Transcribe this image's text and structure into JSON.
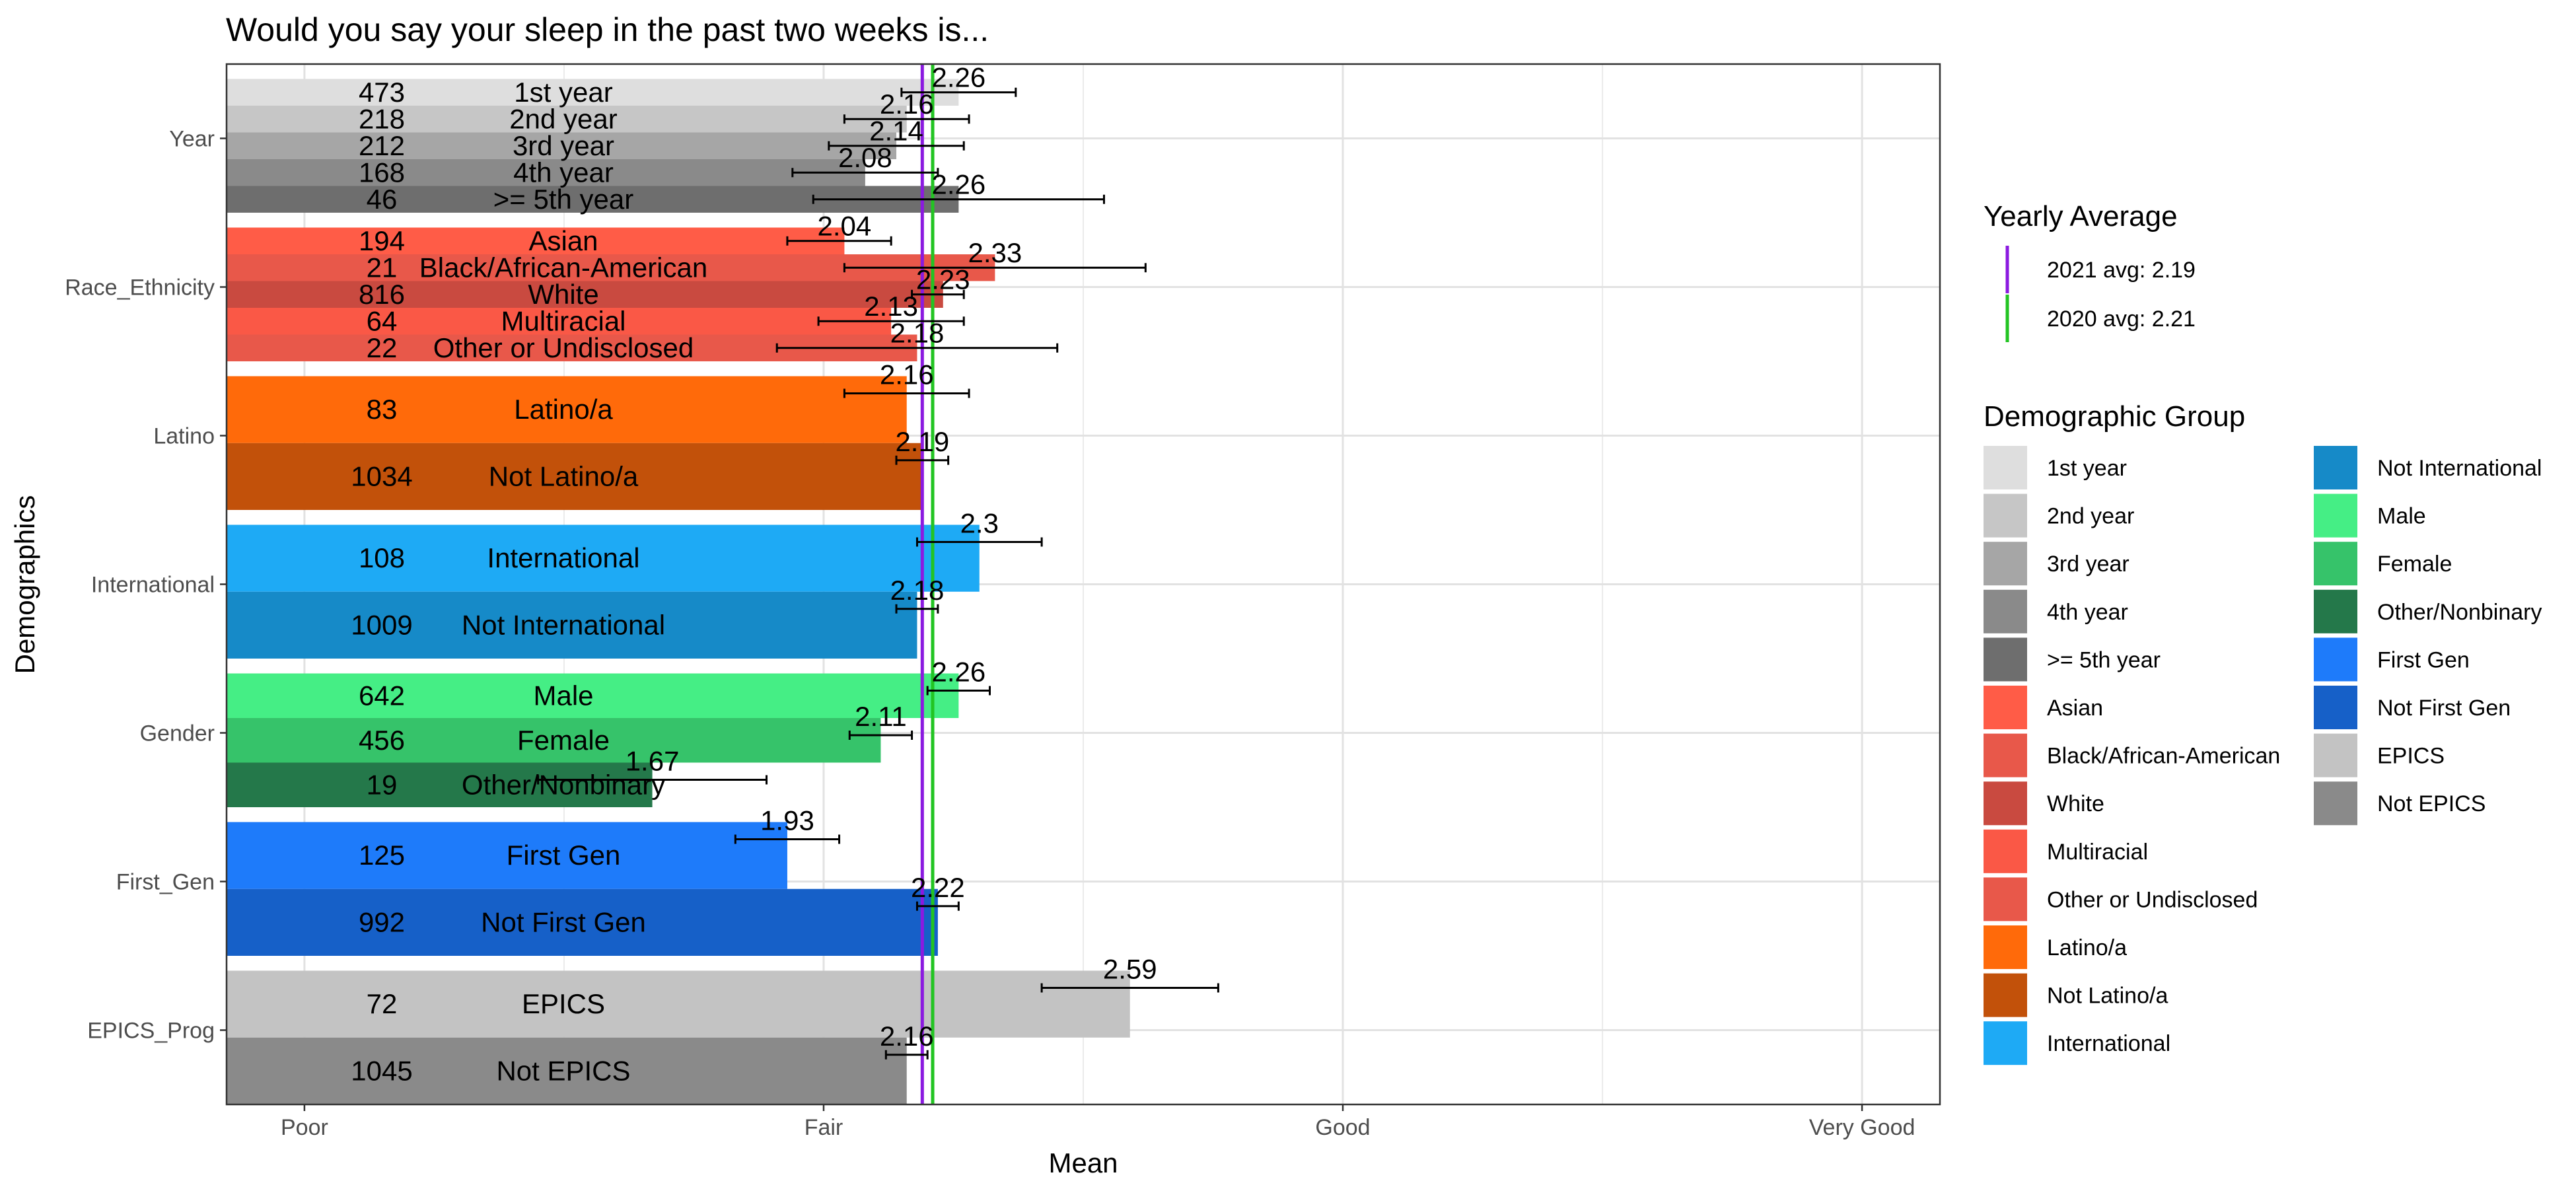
{
  "chart_data": {
    "type": "bar",
    "orientation": "horizontal",
    "title": "Would you say your sleep in the past two weeks is...",
    "xlabel": "Mean",
    "ylabel": "Demographics",
    "xlim": [
      0.85,
      4.15
    ],
    "x_ticks": [
      {
        "value": 1,
        "label": "Poor"
      },
      {
        "value": 2,
        "label": "Fair"
      },
      {
        "value": 3,
        "label": "Good"
      },
      {
        "value": 4,
        "label": "Very Good"
      }
    ],
    "grid": true,
    "facets": [
      "Year",
      "Race_Ethnicity",
      "Latino",
      "International",
      "Gender",
      "First_Gen",
      "EPICS_Prog"
    ],
    "groups": [
      {
        "category": "Year",
        "name": "1st year",
        "n": "473",
        "mean": 2.26,
        "ci": [
          2.15,
          2.37
        ],
        "value_label": "2.26",
        "color": "#dedede"
      },
      {
        "category": "Year",
        "name": "2nd year",
        "n": "218",
        "mean": 2.16,
        "ci": [
          2.04,
          2.28
        ],
        "value_label": "2.16",
        "color": "#c6c6c6"
      },
      {
        "category": "Year",
        "name": "3rd year",
        "n": "212",
        "mean": 2.14,
        "ci": [
          2.01,
          2.27
        ],
        "value_label": "2.14",
        "color": "#a6a6a6"
      },
      {
        "category": "Year",
        "name": "4th year",
        "n": "168",
        "mean": 2.08,
        "ci": [
          1.94,
          2.22
        ],
        "value_label": "2.08",
        "color": "#8a8a8a"
      },
      {
        "category": "Year",
        "name": ">= 5th year",
        "n": "46",
        "mean": 2.26,
        "ci": [
          1.98,
          2.54
        ],
        "value_label": "2.26",
        "color": "#6e6e6e"
      },
      {
        "category": "Race_Ethnicity",
        "name": "Asian",
        "n": "194",
        "mean": 2.04,
        "ci": [
          1.93,
          2.13
        ],
        "value_label": "2.04",
        "color": "#ff5c47"
      },
      {
        "category": "Race_Ethnicity",
        "name": "Black/African-American",
        "n": "21",
        "mean": 2.33,
        "ci": [
          2.04,
          2.62
        ],
        "value_label": "2.33",
        "color": "#e8584a"
      },
      {
        "category": "Race_Ethnicity",
        "name": "White",
        "n": "816",
        "mean": 2.23,
        "ci": [
          2.17,
          2.27
        ],
        "value_label": "2.23",
        "color": "#c94a40"
      },
      {
        "category": "Race_Ethnicity",
        "name": "Multiracial",
        "n": "64",
        "mean": 2.13,
        "ci": [
          1.99,
          2.27
        ],
        "value_label": "2.13",
        "color": "#fa5846"
      },
      {
        "category": "Race_Ethnicity",
        "name": "Other or Undisclosed",
        "n": "22",
        "mean": 2.18,
        "ci": [
          1.91,
          2.45
        ],
        "value_label": "2.18",
        "color": "#e8584a"
      },
      {
        "category": "Latino",
        "name": "Latino/a",
        "n": "83",
        "mean": 2.16,
        "ci": [
          2.04,
          2.28
        ],
        "value_label": "2.16",
        "color": "#ff6a0a"
      },
      {
        "category": "Latino",
        "name": "Not Latino/a",
        "n": "1034",
        "mean": 2.19,
        "ci": [
          2.14,
          2.24
        ],
        "value_label": "2.19",
        "color": "#c2510a"
      },
      {
        "category": "International",
        "name": "International",
        "n": "108",
        "mean": 2.3,
        "ci": [
          2.18,
          2.42
        ],
        "value_label": "2.3",
        "color": "#1eaaf5"
      },
      {
        "category": "International",
        "name": "Not International",
        "n": "1009",
        "mean": 2.18,
        "ci": [
          2.14,
          2.22
        ],
        "value_label": "2.18",
        "color": "#168ac8"
      },
      {
        "category": "Gender",
        "name": "Male",
        "n": "642",
        "mean": 2.26,
        "ci": [
          2.2,
          2.32
        ],
        "value_label": "2.26",
        "color": "#45ee85"
      },
      {
        "category": "Gender",
        "name": "Female",
        "n": "456",
        "mean": 2.11,
        "ci": [
          2.05,
          2.17
        ],
        "value_label": "2.11",
        "color": "#36c36a"
      },
      {
        "category": "Gender",
        "name": "Other/Nonbinary",
        "n": "19",
        "mean": 1.67,
        "ci": [
          1.45,
          1.89
        ],
        "value_label": "1.67",
        "color": "#24784a"
      },
      {
        "category": "First_Gen",
        "name": "First Gen",
        "n": "125",
        "mean": 1.93,
        "ci": [
          1.83,
          2.03
        ],
        "value_label": "1.93",
        "color": "#1e7bfa"
      },
      {
        "category": "First_Gen",
        "name": "Not First Gen",
        "n": "992",
        "mean": 2.22,
        "ci": [
          2.18,
          2.26
        ],
        "value_label": "2.22",
        "color": "#1660c8"
      },
      {
        "category": "EPICS_Prog",
        "name": "EPICS",
        "n": "72",
        "mean": 2.59,
        "ci": [
          2.42,
          2.76
        ],
        "value_label": "2.59",
        "color": "#c3c3c3"
      },
      {
        "category": "EPICS_Prog",
        "name": "Not EPICS",
        "n": "1045",
        "mean": 2.16,
        "ci": [
          2.12,
          2.2
        ],
        "value_label": "2.16",
        "color": "#8a8a8a"
      }
    ],
    "reference_lines": [
      {
        "label": "2021 avg: 2.19",
        "value": 2.19,
        "color": "#8b1ae0"
      },
      {
        "label": "2020 avg: 2.21",
        "value": 2.21,
        "color": "#22c422"
      }
    ],
    "legend_title_lines": "Yearly Average",
    "legend_title_groups": "Demographic Group",
    "legend_placement": "right"
  }
}
